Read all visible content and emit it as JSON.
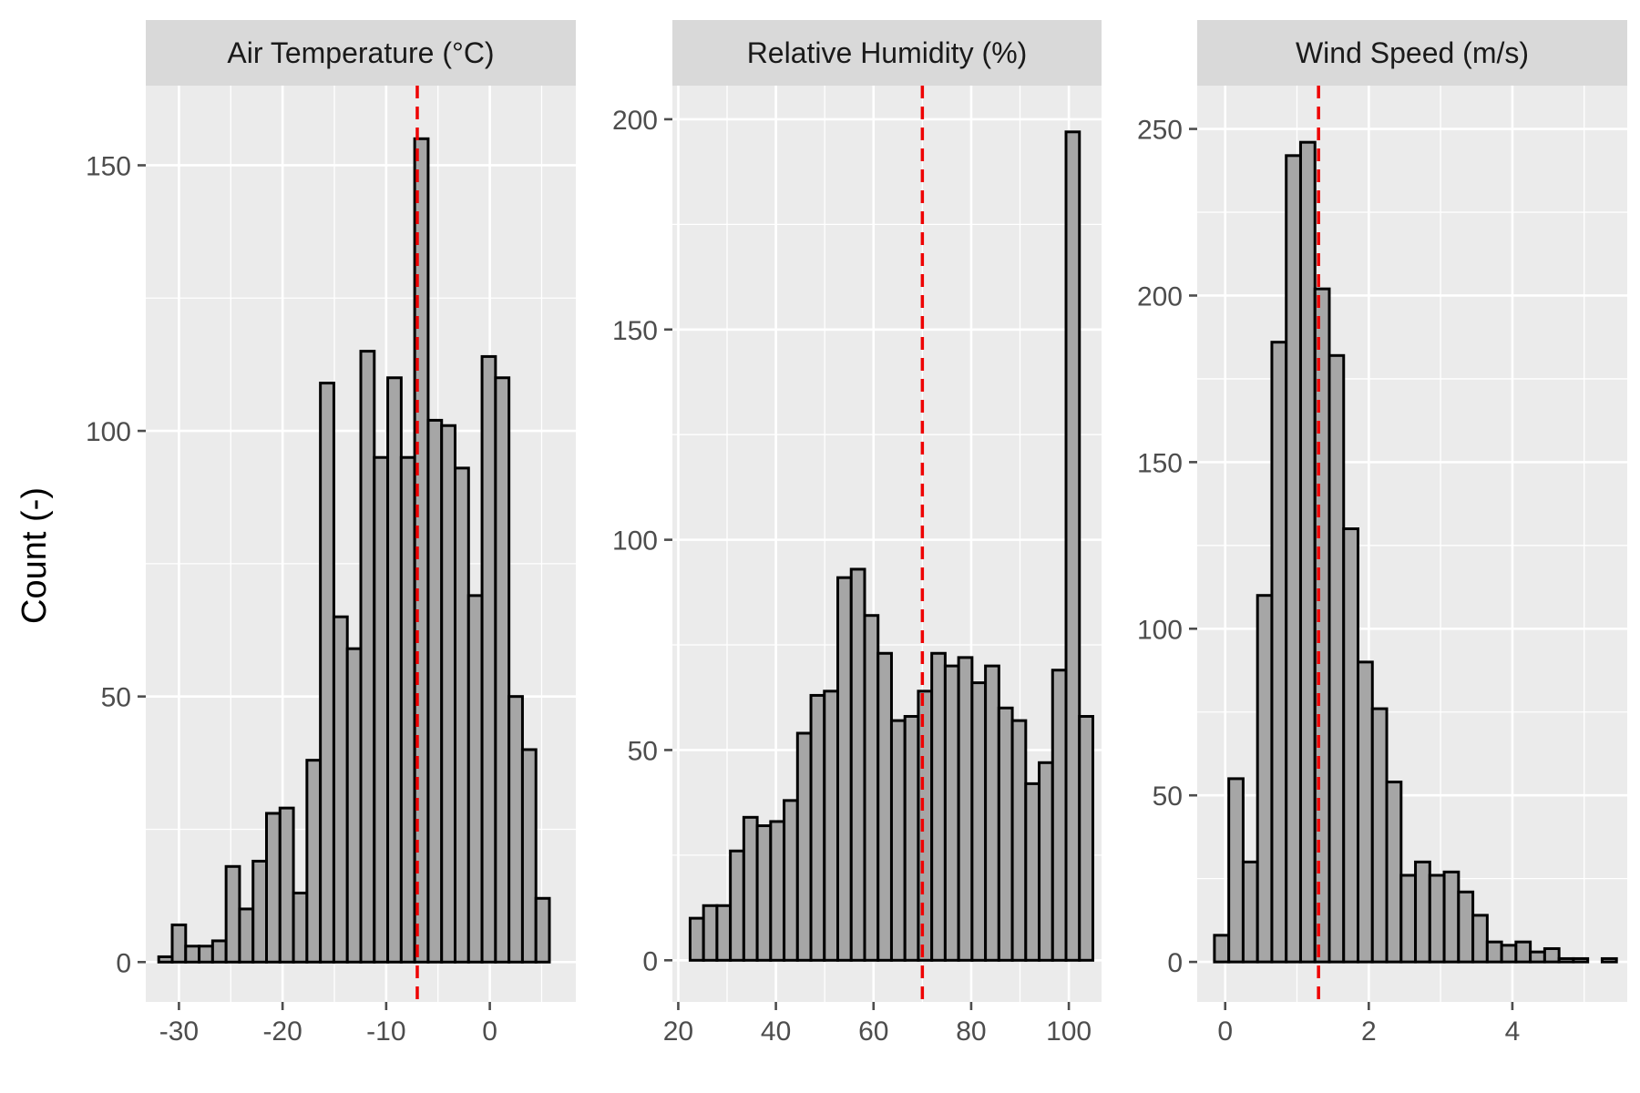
{
  "chart_data": {
    "type": "bar",
    "ylabel": "Count (-)",
    "xlabel": "",
    "grid": true,
    "reference_line_color": "#ee0000",
    "bar_color": "#a6a6a6",
    "panels": [
      {
        "title": "Air Temperature (°C)",
        "bin_width": 1.3,
        "bin_centers": [
          -31.3,
          -30.0,
          -28.7,
          -27.4,
          -26.1,
          -24.8,
          -23.5,
          -22.2,
          -20.9,
          -19.6,
          -18.3,
          -17.0,
          -15.7,
          -14.4,
          -13.1,
          -11.8,
          -10.5,
          -9.2,
          -7.9,
          -6.6,
          -5.3,
          -4.0,
          -2.7,
          -1.4,
          -0.1,
          1.2,
          2.5,
          3.8,
          5.1,
          6.4
        ],
        "values": [
          1,
          7,
          3,
          3,
          4,
          18,
          10,
          19,
          28,
          29,
          13,
          38,
          109,
          65,
          59,
          115,
          95,
          110,
          95,
          155,
          102,
          101,
          93,
          69,
          114,
          110,
          50,
          40,
          12,
          0
        ],
        "reference_x": -7,
        "xlim": [
          -33.2,
          8.3
        ],
        "ylim": [
          -7.5,
          165
        ],
        "xticks": [
          -30,
          -20,
          -10,
          0
        ],
        "xtick_labels": [
          "-30",
          "-20",
          "-10",
          "0"
        ],
        "yticks": [
          0,
          50,
          100,
          150
        ],
        "ytick_labels": [
          "0",
          "50",
          "100",
          "150"
        ]
      },
      {
        "title": "Relative Humidity (%)",
        "bin_width": 2.75,
        "bin_centers": [
          23.8,
          26.55,
          29.3,
          32.05,
          34.8,
          37.55,
          40.3,
          43.05,
          45.8,
          48.55,
          51.3,
          54.05,
          56.8,
          59.55,
          62.3,
          65.05,
          67.8,
          70.55,
          73.3,
          76.05,
          78.8,
          81.55,
          84.3,
          87.05,
          89.8,
          92.55,
          95.3,
          98.05,
          100.8
        ],
        "values": [
          10,
          13,
          13,
          26,
          34,
          32,
          33,
          38,
          54,
          63,
          64,
          91,
          93,
          82,
          73,
          57,
          58,
          64,
          73,
          70,
          72,
          66,
          70,
          60,
          57,
          42,
          47,
          69,
          197
        ],
        "extra_last_bar": 58,
        "reference_x": 70,
        "xlim": [
          18.8,
          106.7
        ],
        "ylim": [
          -9.9,
          208
        ],
        "xticks": [
          20,
          40,
          60,
          80,
          100
        ],
        "xtick_labels": [
          "20",
          "40",
          "60",
          "80",
          "100"
        ],
        "yticks": [
          0,
          50,
          100,
          150,
          200
        ],
        "ytick_labels": [
          "0",
          "50",
          "100",
          "150",
          "200"
        ]
      },
      {
        "title": "Wind Speed (m/s)",
        "bin_width": 0.2,
        "bin_centers": [
          -0.05,
          0.15,
          0.35,
          0.55,
          0.75,
          0.95,
          1.15,
          1.35,
          1.55,
          1.75,
          1.95,
          2.15,
          2.35,
          2.55,
          2.75,
          2.95,
          3.15,
          3.35,
          3.55,
          3.75,
          3.95,
          4.15,
          4.35,
          4.55,
          4.75,
          4.95,
          5.15,
          5.35
        ],
        "values": [
          8,
          55,
          30,
          110,
          186,
          242,
          246,
          202,
          182,
          130,
          90,
          76,
          54,
          26,
          30,
          26,
          27,
          21,
          14,
          6,
          5,
          6,
          3,
          4,
          1,
          1,
          0,
          1
        ],
        "reference_x": 1.3,
        "xlim": [
          -0.39,
          5.6
        ],
        "ylim": [
          -12,
          263
        ],
        "xticks": [
          0,
          2,
          4
        ],
        "xtick_labels": [
          "0",
          "2",
          "4"
        ],
        "yticks": [
          0,
          50,
          100,
          150,
          200,
          250
        ],
        "ytick_labels": [
          "0",
          "50",
          "100",
          "150",
          "200",
          "250"
        ]
      }
    ]
  }
}
